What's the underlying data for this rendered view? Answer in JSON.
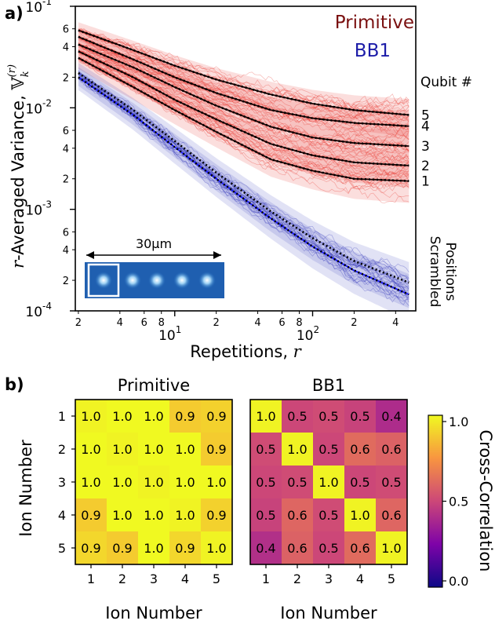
{
  "panel_a": {
    "panel_label": "a)",
    "ylabel_italic": "r",
    "ylabel_text": "-Averaged Variance, ",
    "ylabel_symbol": "𝕍",
    "ylabel_sub": "k",
    "ylabel_sup": "(r)",
    "xlabel_text": "Repetitions, ",
    "xlabel_italic": "r",
    "legend": {
      "primitive": "Primitive",
      "bb1": "BB1"
    },
    "qubit_header": "Qubit #",
    "qubit_labels": [
      "5",
      "4",
      "3",
      "2",
      "1"
    ],
    "scrambled_label_1": "Positions",
    "scrambled_label_2": "Scrambled",
    "scale_label": "30μm",
    "y_major_ticks": [
      {
        "base": "10",
        "exp": "-1",
        "value": 0.1
      },
      {
        "base": "10",
        "exp": "-2",
        "value": 0.01
      },
      {
        "base": "10",
        "exp": "-3",
        "value": 0.001
      },
      {
        "base": "10",
        "exp": "-4",
        "value": 0.0001
      }
    ],
    "y_minor_ticks": [
      {
        "label": "6",
        "value": 0.06
      },
      {
        "label": "4",
        "value": 0.04
      },
      {
        "label": "2",
        "value": 0.02
      },
      {
        "label": "6",
        "value": 0.006
      },
      {
        "label": "4",
        "value": 0.004
      },
      {
        "label": "2",
        "value": 0.002
      },
      {
        "label": "6",
        "value": 0.0006
      },
      {
        "label": "4",
        "value": 0.0004
      },
      {
        "label": "2",
        "value": 0.0002
      }
    ],
    "x_major_ticks": [
      {
        "base": "10",
        "exp": "1",
        "value": 10
      },
      {
        "base": "10",
        "exp": "2",
        "value": 100
      }
    ],
    "x_minor_ticks": [
      {
        "label": "2",
        "value": 2
      },
      {
        "label": "4",
        "value": 4
      },
      {
        "label": "6",
        "value": 6
      },
      {
        "label": "8",
        "value": 8
      },
      {
        "label": "2",
        "value": 20
      },
      {
        "label": "4",
        "value": 40
      },
      {
        "label": "6",
        "value": 60
      },
      {
        "label": "8",
        "value": 80
      },
      {
        "label": "2",
        "value": 200
      },
      {
        "label": "4",
        "value": 400
      }
    ]
  },
  "panel_b": {
    "panel_label": "b)",
    "colorbar_label": "Cross-Correlation",
    "colorbar_ticks": [
      "1.0",
      "0.5",
      "0.0"
    ],
    "ylabel": "Ion Number",
    "xlabel": "Ion Number"
  },
  "chart_data": [
    {
      "type": "line",
      "xscale": "log",
      "yscale": "log",
      "xlim": [
        1.9,
        560
      ],
      "ylim": [
        0.0001,
        0.1
      ],
      "title": "",
      "xlabel": "Repetitions, r",
      "ylabel": "r-Averaged Variance, V_k^(r)",
      "legend_placement": "top-right",
      "colors": {
        "primitive": "#e8332b",
        "bb1": "#2b2fb8",
        "fit_primitive": "#000000",
        "fit_bb1": "#1a1aff"
      },
      "series": [
        {
          "name": "Primitive",
          "qubit": "5",
          "x": [
            2,
            5,
            10,
            20,
            50,
            100,
            200,
            500
          ],
          "y": [
            0.058,
            0.037,
            0.026,
            0.019,
            0.0135,
            0.011,
            0.0095,
            0.0085
          ]
        },
        {
          "name": "Primitive",
          "qubit": "4",
          "x": [
            2,
            5,
            10,
            20,
            50,
            100,
            200,
            500
          ],
          "y": [
            0.05,
            0.03,
            0.02,
            0.014,
            0.0095,
            0.0079,
            0.0071,
            0.0066
          ]
        },
        {
          "name": "Primitive",
          "qubit": "3",
          "x": [
            2,
            5,
            10,
            20,
            50,
            100,
            200,
            500
          ],
          "y": [
            0.042,
            0.025,
            0.016,
            0.0105,
            0.0065,
            0.0051,
            0.0045,
            0.0042
          ]
        },
        {
          "name": "Primitive",
          "qubit": "2",
          "x": [
            2,
            5,
            10,
            20,
            50,
            100,
            200,
            500
          ],
          "y": [
            0.036,
            0.02,
            0.012,
            0.0077,
            0.0044,
            0.0034,
            0.0029,
            0.0027
          ]
        },
        {
          "name": "Primitive",
          "qubit": "1",
          "x": [
            2,
            5,
            10,
            20,
            50,
            100,
            200,
            500
          ],
          "y": [
            0.031,
            0.016,
            0.0095,
            0.0058,
            0.0031,
            0.0024,
            0.002,
            0.0019
          ]
        },
        {
          "name": "BB1",
          "qubit": "scrambled",
          "x": [
            2,
            5,
            10,
            20,
            50,
            100,
            200,
            500
          ],
          "y": [
            0.022,
            0.0095,
            0.0047,
            0.0023,
            0.00095,
            0.00052,
            0.00031,
            0.00019
          ]
        },
        {
          "name": "BB1",
          "qubit": "1",
          "x": [
            2,
            5,
            10,
            20,
            50,
            100,
            200,
            500
          ],
          "y": [
            0.02,
            0.0085,
            0.0041,
            0.002,
            0.00081,
            0.00043,
            0.00025,
            0.000145
          ]
        }
      ]
    },
    {
      "type": "heatmap",
      "title": "Primitive",
      "xlabel": "Ion Number",
      "ylabel": "Ion Number",
      "x": [
        "1",
        "2",
        "3",
        "4",
        "5"
      ],
      "y": [
        "1",
        "2",
        "3",
        "4",
        "5"
      ],
      "values": [
        [
          1.0,
          1.0,
          1.0,
          0.9,
          0.9
        ],
        [
          1.0,
          1.0,
          1.0,
          1.0,
          0.9
        ],
        [
          1.0,
          1.0,
          1.0,
          1.0,
          1.0
        ],
        [
          0.9,
          1.0,
          1.0,
          1.0,
          0.9
        ],
        [
          0.9,
          0.9,
          1.0,
          0.9,
          1.0
        ]
      ],
      "colorbar_range": [
        0.0,
        1.0
      ]
    },
    {
      "type": "heatmap",
      "title": "BB1",
      "xlabel": "Ion Number",
      "ylabel": "",
      "x": [
        "1",
        "2",
        "3",
        "4",
        "5"
      ],
      "y": [
        "1",
        "2",
        "3",
        "4",
        "5"
      ],
      "values": [
        [
          1.0,
          0.5,
          0.5,
          0.5,
          0.4
        ],
        [
          0.5,
          1.0,
          0.5,
          0.6,
          0.6
        ],
        [
          0.5,
          0.5,
          1.0,
          0.5,
          0.5
        ],
        [
          0.5,
          0.6,
          0.5,
          1.0,
          0.6
        ],
        [
          0.4,
          0.6,
          0.5,
          0.6,
          1.0
        ]
      ],
      "colorbar_range": [
        0.0,
        1.0
      ]
    }
  ]
}
